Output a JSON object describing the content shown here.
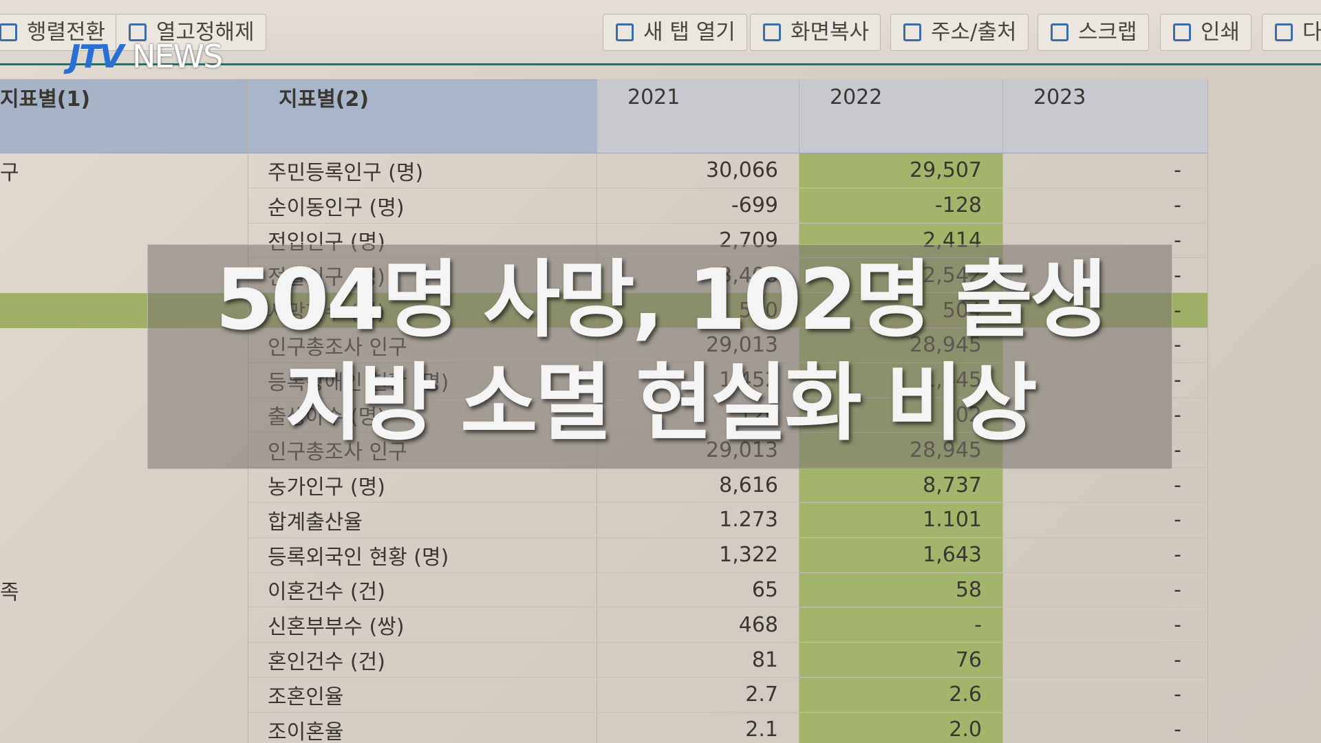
{
  "toolbar": {
    "buttons": [
      "행렬전환",
      "열고정해제",
      "새 탭 열기",
      "화면복사",
      "주소/출처",
      "스크랩",
      "인쇄",
      "다운로드"
    ]
  },
  "logo": {
    "brand": "JTV",
    "suffix": "NEWS"
  },
  "table": {
    "headers": [
      "지표별(1)",
      "지표별(2)",
      "2021",
      "2022",
      "2023"
    ],
    "rows": [
      [
        "구",
        "주민등록인구 (명)",
        "30,066",
        "29,507",
        "-"
      ],
      [
        null,
        "순이동인구 (명)",
        "-699",
        "-128",
        "-"
      ],
      [
        null,
        "전입인구 (명)",
        "2,709",
        "2,414",
        "-"
      ],
      [
        null,
        "전출인구 (명)",
        "3,408",
        "2,542",
        "-"
      ],
      [
        null,
        "사망자수 (명)",
        "540",
        "504",
        "-"
      ],
      [
        null,
        "인구총조사 인구",
        "29,013",
        "28,945",
        "-"
      ],
      [
        null,
        "등록장애인 현황 (명)",
        "1,452",
        "1,445",
        "-"
      ],
      [
        null,
        "출생아수 (명)",
        "120",
        "102",
        "-"
      ],
      [
        null,
        "인구총조사 인구",
        "29,013",
        "28,945",
        "-"
      ],
      [
        null,
        "농가인구 (명)",
        "8,616",
        "8,737",
        "-"
      ],
      [
        null,
        "합계출산율",
        "1.273",
        "1.101",
        "-"
      ],
      [
        null,
        "등록외국인 현황 (명)",
        "1,322",
        "1,643",
        "-"
      ],
      [
        "족",
        "이혼건수 (건)",
        "65",
        "58",
        "-"
      ],
      [
        null,
        "신혼부부수 (쌍)",
        "468",
        "-",
        "-"
      ],
      [
        null,
        "혼인건수 (건)",
        "81",
        "76",
        "-"
      ],
      [
        null,
        "조혼인율",
        "2.7",
        "2.6",
        "-"
      ],
      [
        null,
        "조이혼율",
        "2.1",
        "2.0",
        "-"
      ]
    ]
  },
  "caption": {
    "lines": [
      "504명 사망, 102명 출생",
      "지방 소멸 현실화 비상"
    ]
  }
}
